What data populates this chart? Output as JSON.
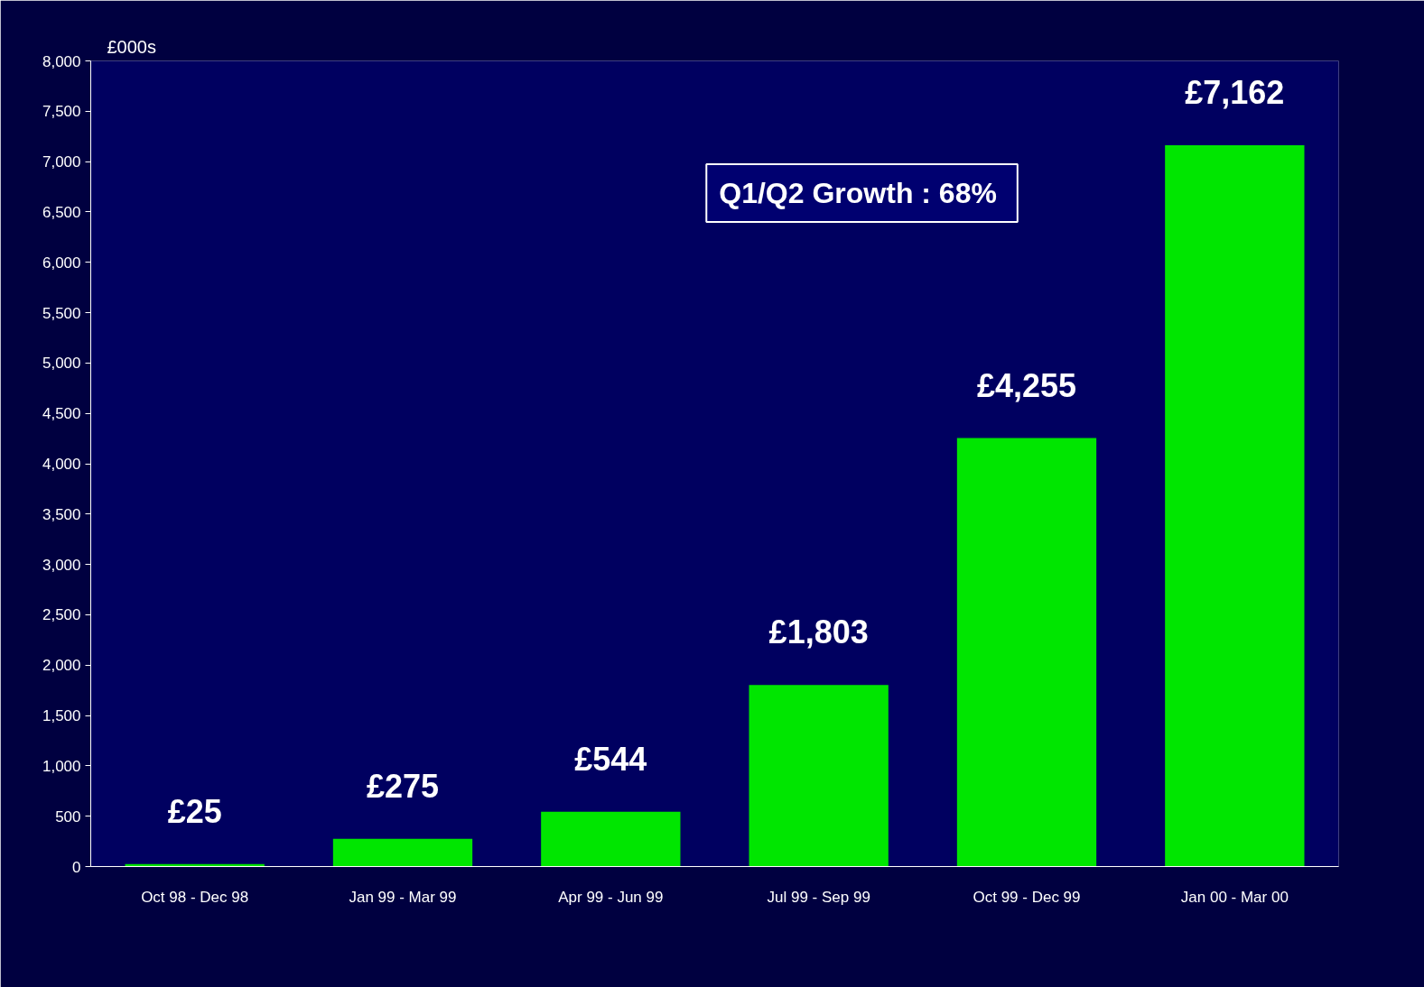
{
  "chart_data": {
    "type": "bar",
    "ylabel": "£000s",
    "categories": [
      "Oct 98 - Dec 98",
      "Jan 99 - Mar 99",
      "Apr 99 - Jun 99",
      "Jul 99 - Sep 99",
      "Oct 99 - Dec 99",
      "Jan 00 - Mar 00"
    ],
    "values": [
      25,
      275,
      544,
      1803,
      4255,
      7162
    ],
    "value_labels": [
      "£25",
      "£275",
      "£544",
      "£1,803",
      "£4,255",
      "£7,162"
    ],
    "color": "#00e600",
    "ylim": [
      0,
      8000
    ],
    "yticks": [
      0,
      500,
      {
        "value": 1000,
        "label": "1,000"
      },
      {
        "value": 1500,
        "label": "1,500"
      },
      {
        "value": 2000,
        "label": "2,000"
      },
      {
        "value": 2500,
        "label": "2,500"
      },
      {
        "value": 3000,
        "label": "3,000"
      },
      {
        "value": 3500,
        "label": "3,500"
      },
      {
        "value": 4000,
        "label": "4,000"
      },
      {
        "value": 4500,
        "label": "4,500"
      },
      {
        "value": 5000,
        "label": "5,000"
      },
      {
        "value": 5500,
        "label": "5,500"
      },
      {
        "value": 6000,
        "label": "6,000"
      },
      {
        "value": 6500,
        "label": "6,500"
      },
      {
        "value": 7000,
        "label": "7,000"
      },
      {
        "value": 7500,
        "label": "7,500"
      },
      {
        "value": 8000,
        "label": "8,000"
      }
    ],
    "annotations": [
      "Q1/Q2  Growth : 68%"
    ],
    "grid": false
  }
}
